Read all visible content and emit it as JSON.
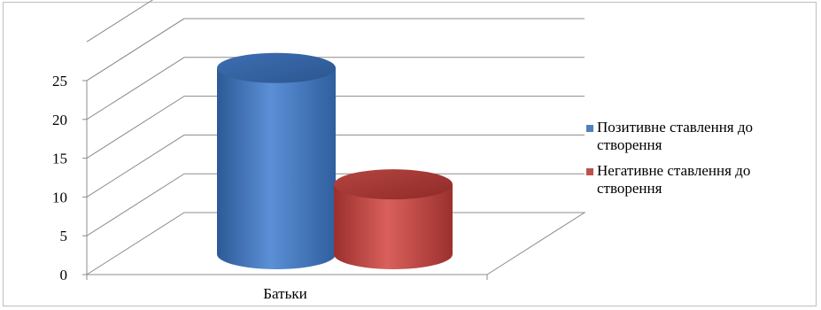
{
  "chart_data": {
    "type": "bar",
    "categories": [
      "Батьки"
    ],
    "series": [
      {
        "name": "Позитивне ставлення до створення",
        "values": [
          24
        ],
        "color": "#4f81bd"
      },
      {
        "name": "Негативне ставлення до створення",
        "values": [
          9
        ],
        "color": "#c0504d"
      }
    ],
    "ylim": [
      0,
      25
    ],
    "yticks": [
      "0",
      "5",
      "10",
      "15",
      "20",
      "25"
    ],
    "xlabel": "",
    "ylabel": "",
    "grid": true,
    "legend_position": "right",
    "style": "3d-cylinder"
  }
}
